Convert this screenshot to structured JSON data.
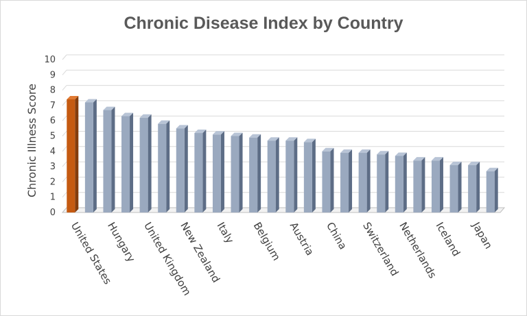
{
  "chart_data": {
    "type": "bar",
    "title": "Chronic Disease Index by Country",
    "ylabel": "Chronic Illness Score",
    "xlabel": "",
    "ylim": [
      0,
      10
    ],
    "yticks": [
      0,
      1,
      2,
      3,
      4,
      5,
      6,
      7,
      8,
      9,
      10
    ],
    "grid": true,
    "legend": "none",
    "three_d": true,
    "categories": [
      "United States",
      "",
      "Hungary",
      "",
      "United Kingdom",
      "",
      "New Zealand",
      "",
      "Italy",
      "",
      "Belgium",
      "",
      "Austria",
      "",
      "China",
      "",
      "Switzerland",
      "",
      "Netherlands",
      "",
      "Iceland",
      "",
      "Japan",
      ""
    ],
    "values": [
      7.4,
      7.2,
      6.7,
      6.3,
      6.2,
      5.8,
      5.5,
      5.2,
      5.1,
      5.0,
      4.9,
      4.7,
      4.7,
      4.6,
      4.0,
      3.9,
      3.9,
      3.8,
      3.7,
      3.4,
      3.4,
      3.1,
      3.1,
      2.7
    ],
    "colors": {
      "highlight_front": "#c55a11",
      "highlight_side": "#843c0c",
      "highlight_top": "#e07a33",
      "bar_front": "#9aa9bf",
      "bar_side": "#5d6d86",
      "bar_top": "#b8c4d6",
      "grid": "#d9d9d9",
      "floor": "#bfbfbf"
    },
    "highlight_index": 0
  }
}
